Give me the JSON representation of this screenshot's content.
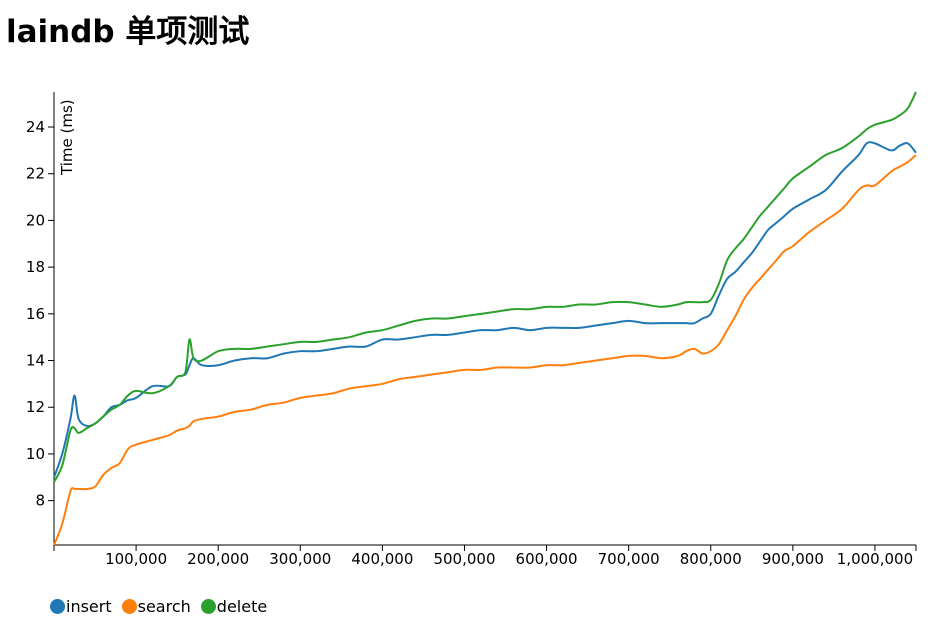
{
  "title": "laindb 单项测试",
  "chart_data": {
    "type": "line",
    "title": "laindb 单项测试",
    "xlabel": "",
    "ylabel": "Time (ms)",
    "xlim": [
      0,
      1050000
    ],
    "ylim": [
      6.1,
      25.5
    ],
    "x_ticks": [
      100000,
      200000,
      300000,
      400000,
      500000,
      600000,
      700000,
      800000,
      900000,
      1000000
    ],
    "x_tick_labels": [
      "100,000",
      "200,000",
      "300,000",
      "400,000",
      "500,000",
      "600,000",
      "700,000",
      "800,000",
      "900,000",
      "1,000,000"
    ],
    "y_ticks": [
      8,
      10,
      12,
      14,
      16,
      18,
      20,
      22,
      24
    ],
    "y_tick_labels": [
      "8",
      "10",
      "12",
      "14",
      "16",
      "18",
      "20",
      "22",
      "24"
    ],
    "grid": false,
    "legend_position": "bottom-left",
    "x": [
      0,
      10000,
      20000,
      25000,
      30000,
      40000,
      50000,
      60000,
      70000,
      80000,
      90000,
      100000,
      120000,
      140000,
      150000,
      160000,
      165000,
      170000,
      180000,
      200000,
      220000,
      240000,
      260000,
      280000,
      300000,
      320000,
      340000,
      360000,
      380000,
      400000,
      420000,
      440000,
      460000,
      480000,
      500000,
      520000,
      540000,
      560000,
      580000,
      600000,
      620000,
      640000,
      660000,
      680000,
      700000,
      720000,
      740000,
      760000,
      770000,
      780000,
      790000,
      800000,
      810000,
      820000,
      830000,
      840000,
      850000,
      860000,
      870000,
      880000,
      890000,
      900000,
      920000,
      940000,
      960000,
      980000,
      990000,
      1000000,
      1020000,
      1030000,
      1040000,
      1050000
    ],
    "series": [
      {
        "name": "insert",
        "color": "#1f77b4",
        "values": [
          9.0,
          10.0,
          11.5,
          12.5,
          11.5,
          11.2,
          11.3,
          11.6,
          12.0,
          12.1,
          12.3,
          12.4,
          12.9,
          12.9,
          13.3,
          13.4,
          13.8,
          14.1,
          13.8,
          13.8,
          14.0,
          14.1,
          14.1,
          14.3,
          14.4,
          14.4,
          14.5,
          14.6,
          14.6,
          14.9,
          14.9,
          15.0,
          15.1,
          15.1,
          15.2,
          15.3,
          15.3,
          15.4,
          15.3,
          15.4,
          15.4,
          15.4,
          15.5,
          15.6,
          15.7,
          15.6,
          15.6,
          15.6,
          15.6,
          15.6,
          15.8,
          16.0,
          16.8,
          17.5,
          17.8,
          18.2,
          18.6,
          19.1,
          19.6,
          19.9,
          20.2,
          20.5,
          20.9,
          21.3,
          22.1,
          22.8,
          23.3,
          23.3,
          23.0,
          23.2,
          23.3,
          22.9
        ]
      },
      {
        "name": "search",
        "color": "#ff7f0e",
        "values": [
          6.1,
          7.0,
          8.4,
          8.5,
          8.5,
          8.5,
          8.6,
          9.1,
          9.4,
          9.6,
          10.2,
          10.4,
          10.6,
          10.8,
          11.0,
          11.1,
          11.2,
          11.4,
          11.5,
          11.6,
          11.8,
          11.9,
          12.1,
          12.2,
          12.4,
          12.5,
          12.6,
          12.8,
          12.9,
          13.0,
          13.2,
          13.3,
          13.4,
          13.5,
          13.6,
          13.6,
          13.7,
          13.7,
          13.7,
          13.8,
          13.8,
          13.9,
          14.0,
          14.1,
          14.2,
          14.2,
          14.1,
          14.2,
          14.4,
          14.5,
          14.3,
          14.4,
          14.7,
          15.3,
          15.9,
          16.6,
          17.1,
          17.5,
          17.9,
          18.3,
          18.7,
          18.9,
          19.5,
          20.0,
          20.5,
          21.3,
          21.5,
          21.5,
          22.1,
          22.3,
          22.5,
          22.8
        ]
      },
      {
        "name": "delete",
        "color": "#2ca02c",
        "values": [
          8.8,
          9.5,
          11.0,
          11.1,
          10.9,
          11.1,
          11.3,
          11.6,
          11.9,
          12.1,
          12.5,
          12.7,
          12.6,
          12.9,
          13.3,
          13.5,
          14.9,
          14.1,
          14.0,
          14.4,
          14.5,
          14.5,
          14.6,
          14.7,
          14.8,
          14.8,
          14.9,
          15.0,
          15.2,
          15.3,
          15.5,
          15.7,
          15.8,
          15.8,
          15.9,
          16.0,
          16.1,
          16.2,
          16.2,
          16.3,
          16.3,
          16.4,
          16.4,
          16.5,
          16.5,
          16.4,
          16.3,
          16.4,
          16.5,
          16.5,
          16.5,
          16.6,
          17.3,
          18.3,
          18.8,
          19.2,
          19.7,
          20.2,
          20.6,
          21.0,
          21.4,
          21.8,
          22.3,
          22.8,
          23.1,
          23.6,
          23.9,
          24.1,
          24.3,
          24.5,
          24.8,
          25.5
        ]
      }
    ]
  }
}
